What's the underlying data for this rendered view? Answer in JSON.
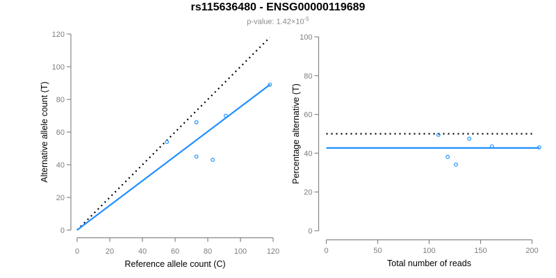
{
  "header": {
    "title": "rs115636480 - ENSG00000119689",
    "subtitle_prefix": "p-value: 1.42×10",
    "subtitle_exponent": "-5"
  },
  "colors": {
    "accent_blue": "#1E90FF",
    "identity_black": "#000000",
    "axis_line": "#858585",
    "tick_label": "#7d7d7d",
    "axis_title": "#000000"
  },
  "chart_data": [
    {
      "type": "scatter",
      "name": "allele-counts",
      "xlabel": "Reference allele count (C)",
      "ylabel": "Alternative allele count (T)",
      "xlim": [
        0,
        120
      ],
      "ylim": [
        0,
        120
      ],
      "xticks": [
        0,
        20,
        40,
        60,
        80,
        100,
        120
      ],
      "yticks": [
        0,
        20,
        40,
        60,
        80,
        100,
        120
      ],
      "grid": false,
      "points": [
        [
          55,
          54
        ],
        [
          73,
          66
        ],
        [
          73,
          45
        ],
        [
          83,
          43
        ],
        [
          91,
          70
        ],
        [
          118,
          89
        ]
      ],
      "lines": [
        {
          "name": "identity",
          "style": "dotted",
          "color": "#000000",
          "from": [
            0,
            0
          ],
          "to": [
            118,
            118
          ]
        },
        {
          "name": "fit",
          "style": "solid",
          "color": "#1E90FF",
          "from": [
            0,
            0
          ],
          "to": [
            118,
            89
          ]
        }
      ]
    },
    {
      "type": "scatter",
      "name": "percentage-alternative",
      "xlabel": "Total number of reads",
      "ylabel": "Percentage alternative (T)",
      "xlim": [
        0,
        207
      ],
      "ylim": [
        0,
        100
      ],
      "xticks": [
        0,
        50,
        100,
        150,
        200
      ],
      "yticks": [
        0,
        20,
        40,
        60,
        80,
        100
      ],
      "grid": false,
      "points": [
        [
          109,
          49.5
        ],
        [
          118,
          38.1
        ],
        [
          126,
          34.1
        ],
        [
          139,
          47.5
        ],
        [
          161,
          43.5
        ],
        [
          207,
          43
        ]
      ],
      "lines": [
        {
          "name": "expected",
          "style": "dotted",
          "color": "#000000",
          "from": [
            0,
            50
          ],
          "to": [
            202,
            50
          ]
        },
        {
          "name": "observed",
          "style": "solid",
          "color": "#1E90FF",
          "from": [
            0,
            42.7
          ],
          "to": [
            207,
            42.7
          ]
        }
      ]
    }
  ]
}
